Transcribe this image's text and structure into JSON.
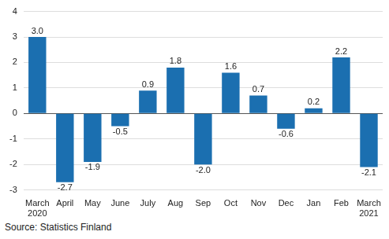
{
  "chart_data": {
    "type": "bar",
    "categories": [
      "March 2020",
      "April",
      "May",
      "June",
      "July",
      "Aug",
      "Sep",
      "Oct",
      "Nov",
      "Dec",
      "Jan",
      "Feb",
      "March 2021"
    ],
    "values": [
      3.0,
      -2.7,
      -1.9,
      -0.5,
      0.9,
      1.8,
      -2.0,
      1.6,
      0.7,
      -0.6,
      0.2,
      2.2,
      -2.1
    ],
    "value_labels": [
      "3.0",
      "-2.7",
      "-1.9",
      "-0.5",
      "0.9",
      "1.8",
      "-2.0",
      "1.6",
      "0.7",
      "-0.6",
      "0.2",
      "2.2",
      "-2.1"
    ],
    "data_labels": true,
    "color": "#1b6fb0",
    "ylim": [
      -3,
      4
    ],
    "yticks": [
      -3,
      -2,
      -1,
      0,
      1,
      2,
      3,
      4
    ],
    "grid": true,
    "source": "Source: Statistics Finland"
  }
}
